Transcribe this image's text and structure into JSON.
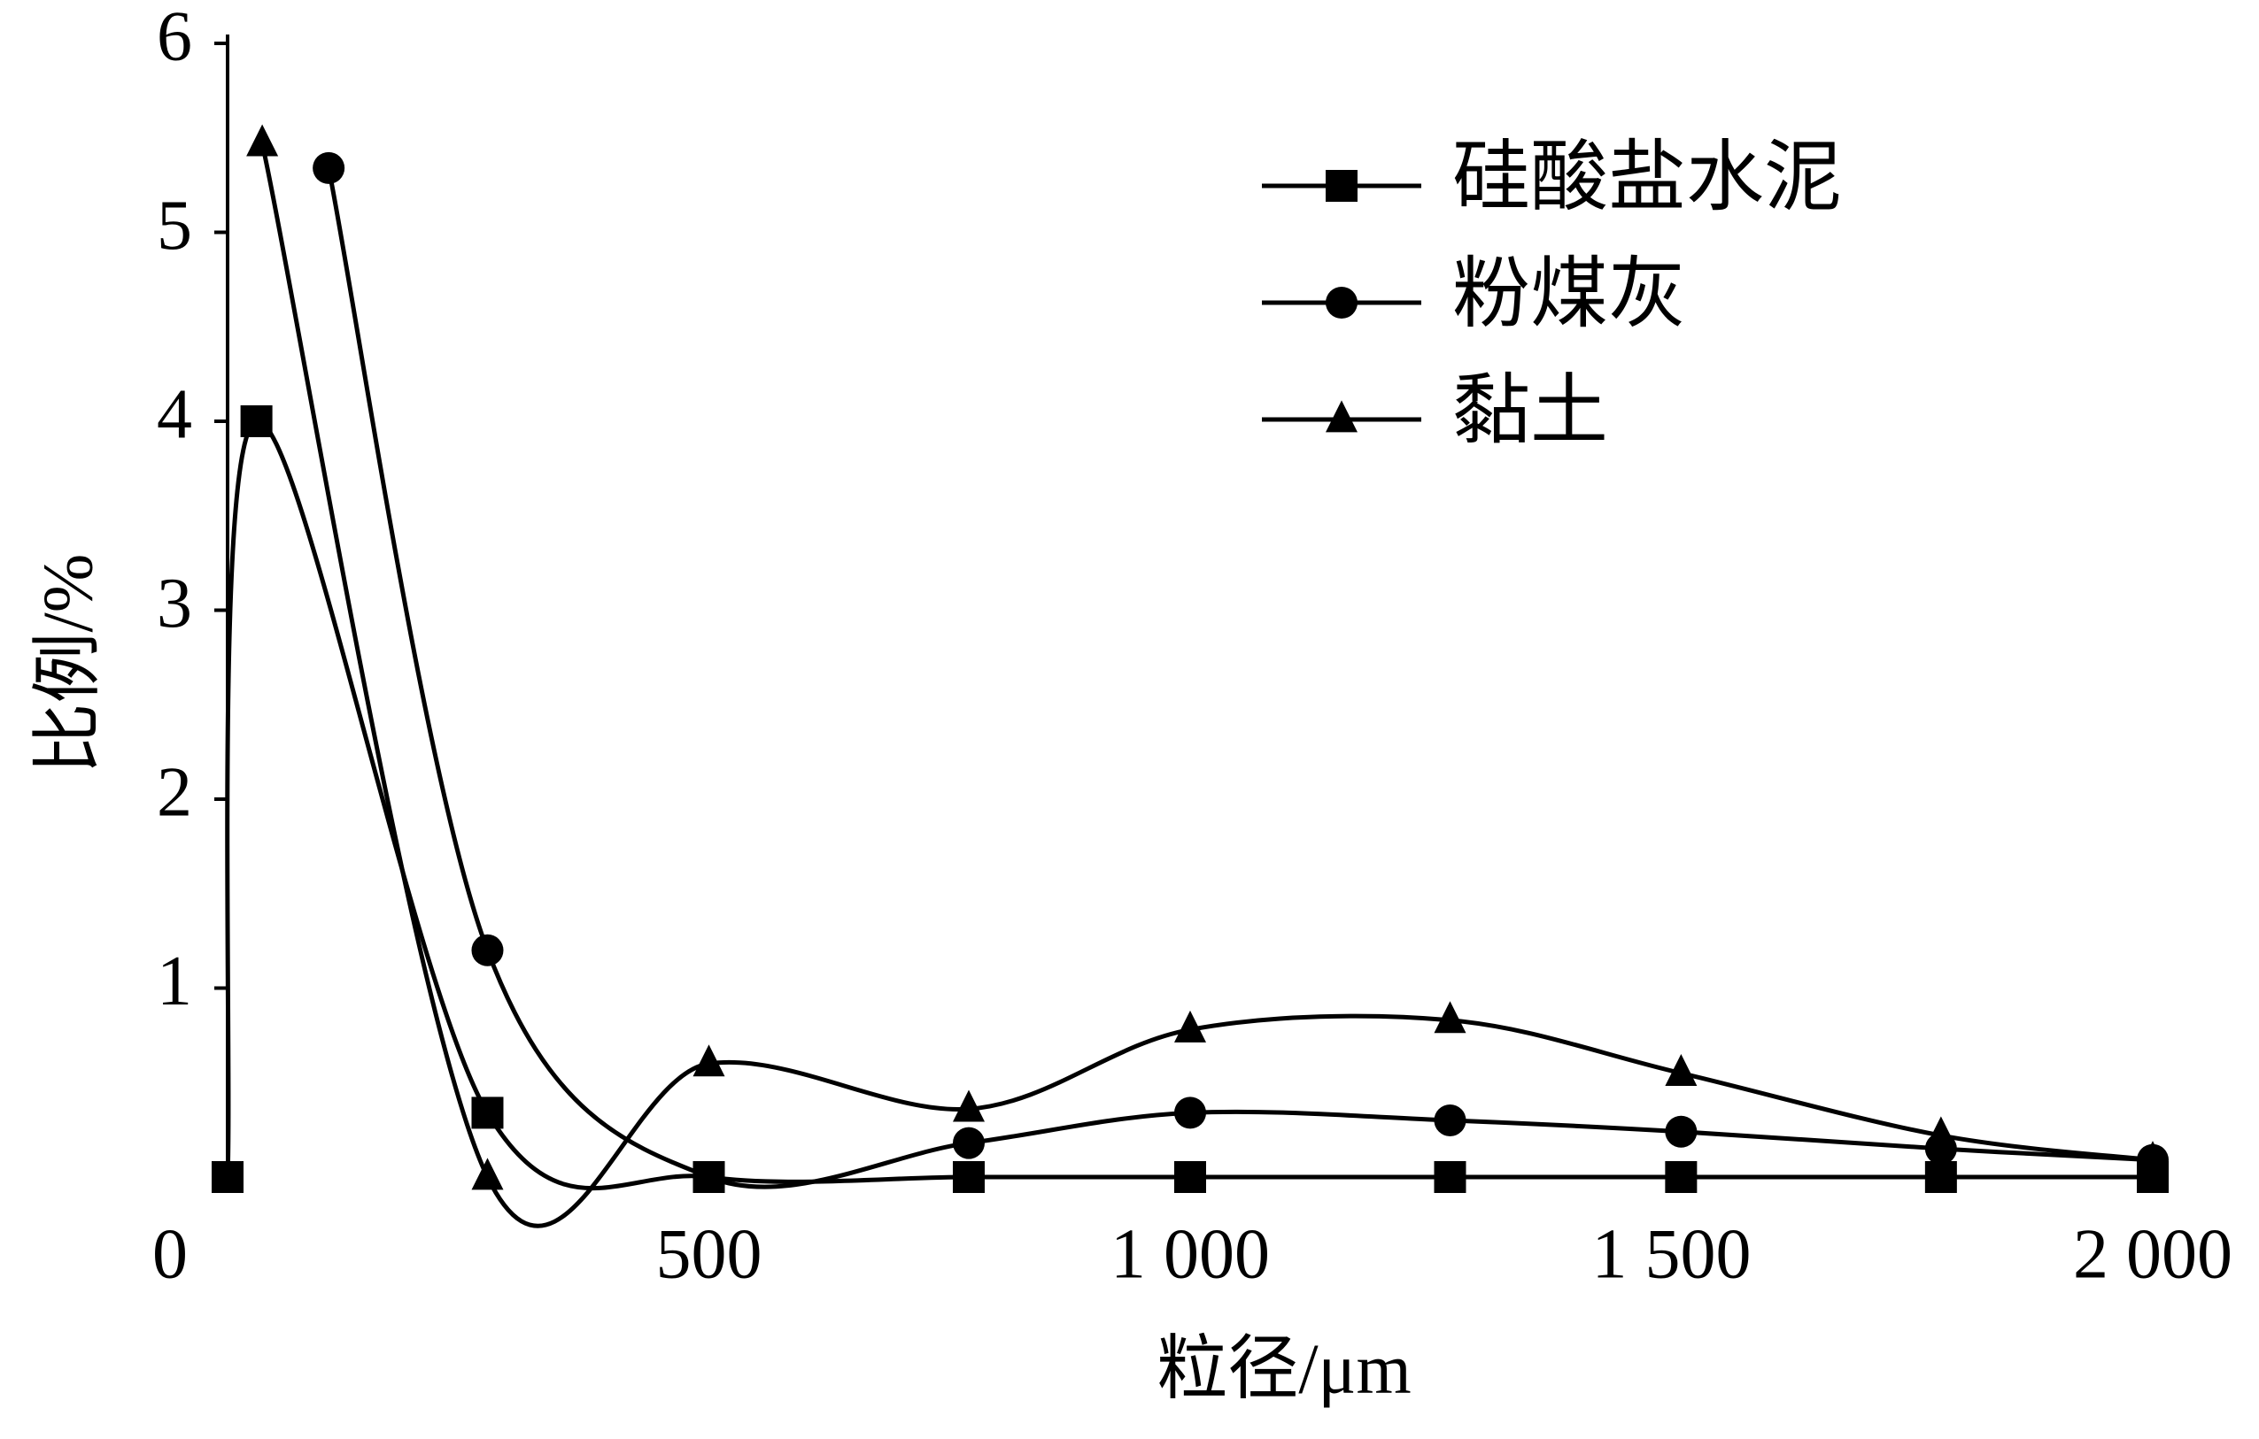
{
  "chart_data": {
    "type": "line",
    "xlabel": "粒径/μm",
    "ylabel": "比例/%",
    "xlim": [
      0,
      2000
    ],
    "ylim": [
      0,
      6
    ],
    "xticks": [
      0,
      500,
      {
        "value": 1000,
        "label": "1 000"
      },
      {
        "value": 1500,
        "label": "1 500"
      },
      {
        "value": 2000,
        "label": "2 000"
      }
    ],
    "yticks": [
      1,
      2,
      3,
      4,
      5,
      6
    ],
    "legend": "upper right",
    "series": [
      {
        "name": "硅酸盐水泥",
        "color": "#000000",
        "marker": "square",
        "x": [
          0,
          30,
          270,
          500,
          770,
          1000,
          1270,
          1510,
          1780,
          2000
        ],
        "values": [
          0,
          4.0,
          0.34,
          0,
          0,
          0,
          0,
          0,
          0,
          0
        ]
      },
      {
        "name": "粉煤灰",
        "color": "#000000",
        "marker": "circle",
        "x": [
          105,
          270,
          500,
          770,
          1000,
          1270,
          1510,
          1780,
          2000
        ],
        "values": [
          5.34,
          1.2,
          0,
          0.18,
          0.34,
          0.3,
          0.24,
          0.15,
          0.09
        ]
      },
      {
        "name": "黏土",
        "color": "#000000",
        "marker": "triangle",
        "x": [
          36,
          270,
          500,
          770,
          1000,
          1270,
          1510,
          1780,
          2000
        ],
        "values": [
          5.47,
          0,
          0.6,
          0.36,
          0.78,
          0.83,
          0.55,
          0.22,
          0.09
        ]
      }
    ]
  }
}
